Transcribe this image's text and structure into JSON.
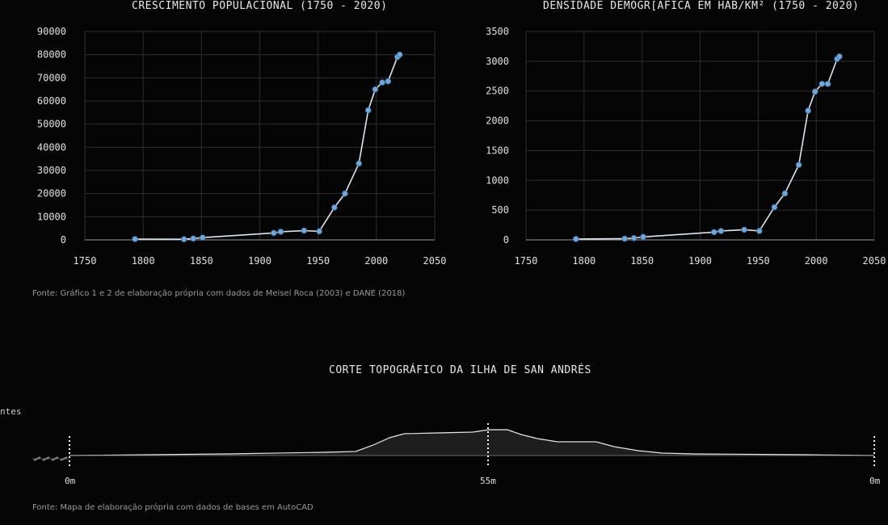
{
  "chart_data": [
    {
      "type": "line",
      "title": "CRESCIMENTO POPULACIONAL (1750 - 2020)",
      "xlim": [
        1750,
        2050
      ],
      "ylim": [
        0,
        90000
      ],
      "xticks": [
        "1750",
        "1800",
        "1850",
        "1900",
        "1950",
        "2000",
        "2050"
      ],
      "yticks": [
        "0",
        "10000",
        "20000",
        "30000",
        "40000",
        "50000",
        "60000",
        "70000",
        "80000",
        "90000"
      ],
      "grid": true,
      "series": [
        {
          "color": "#6fa8dc",
          "x": [
            1793,
            1835,
            1843,
            1851,
            1912,
            1918,
            1938,
            1951,
            1964,
            1973,
            1985,
            1993,
            1999,
            2005,
            2010,
            2018,
            2020
          ],
          "y": [
            350,
            300,
            600,
            1000,
            3000,
            3500,
            4000,
            3700,
            14000,
            20000,
            33000,
            56000,
            65000,
            68000,
            68500,
            79000,
            80000
          ]
        }
      ]
    },
    {
      "type": "line",
      "title": "DENSIDADE DEMOGR[AFICA EM HAB/KM² (1750 - 2020)",
      "xlim": [
        1750,
        2050
      ],
      "ylim": [
        0,
        3500
      ],
      "xticks": [
        "1750",
        "1800",
        "1850",
        "1900",
        "1950",
        "2000",
        "2050"
      ],
      "yticks": [
        "0",
        "500",
        "1000",
        "1500",
        "2000",
        "2500",
        "3000",
        "3500"
      ],
      "grid": true,
      "series": [
        {
          "color": "#6fa8dc",
          "x": [
            1793,
            1835,
            1843,
            1851,
            1912,
            1918,
            1938,
            1951,
            1964,
            1973,
            1985,
            1993,
            1999,
            2005,
            2010,
            2018,
            2020
          ],
          "y": [
            15,
            20,
            30,
            50,
            130,
            150,
            170,
            150,
            550,
            780,
            1260,
            2170,
            2490,
            2620,
            2620,
            3040,
            3080
          ]
        }
      ]
    }
  ],
  "source_charts": "Fonte: Gráfico 1 e 2 de elaboração própria com dados de Meisel Roca (2003) e DANE (2018)",
  "topo": {
    "title": "CORTE TOPOGRÁFICO DA ILHA DE SAN ANDRÉS",
    "side_label": "ntes",
    "labels": [
      "0m",
      "55m",
      "0m"
    ],
    "source": "Fonte: Mapa de elaboração própria com dados de bases em AutoCAD"
  }
}
